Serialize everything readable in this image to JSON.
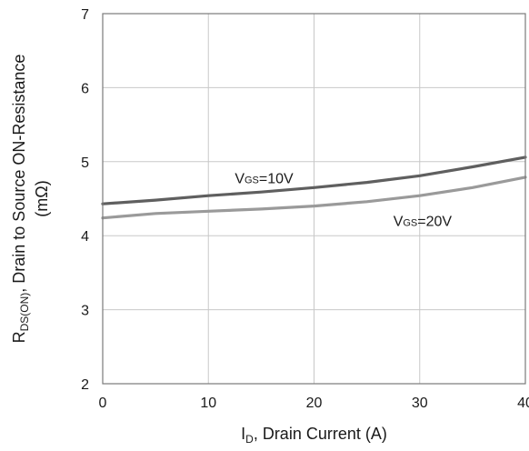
{
  "chart_data": {
    "type": "line",
    "xlabel": {
      "main": "I",
      "sub": "D",
      "rest": ", Drain Current (A)"
    },
    "ylabel": {
      "main": "R",
      "sub": "DS(ON)",
      "rest": ", Drain to Source ON-Resistance",
      "line2": "(mΩ)"
    },
    "xlim": [
      0,
      40
    ],
    "ylim": [
      2,
      7
    ],
    "xticks": [
      "0",
      "10",
      "20",
      "30",
      "40"
    ],
    "yticks": [
      "2",
      "3",
      "4",
      "5",
      "6",
      "7"
    ],
    "grid": true,
    "colors": {
      "grid": "#c8c8c8",
      "axis": "#7a7a7a"
    },
    "series": [
      {
        "label_main": "V",
        "label_sub": "GS",
        "label_rest": "=10V",
        "color": "#5f5f5f",
        "x": [
          0,
          5,
          10,
          15,
          20,
          25,
          30,
          35,
          40
        ],
        "y": [
          4.43,
          4.48,
          4.54,
          4.59,
          4.65,
          4.72,
          4.81,
          4.93,
          5.06
        ]
      },
      {
        "label_main": "V",
        "label_sub": "GS",
        "label_rest": "=20V",
        "color": "#9a9a9a",
        "x": [
          0,
          5,
          10,
          15,
          20,
          25,
          30,
          35,
          40
        ],
        "y": [
          4.24,
          4.3,
          4.33,
          4.36,
          4.4,
          4.46,
          4.54,
          4.65,
          4.79
        ]
      }
    ]
  }
}
